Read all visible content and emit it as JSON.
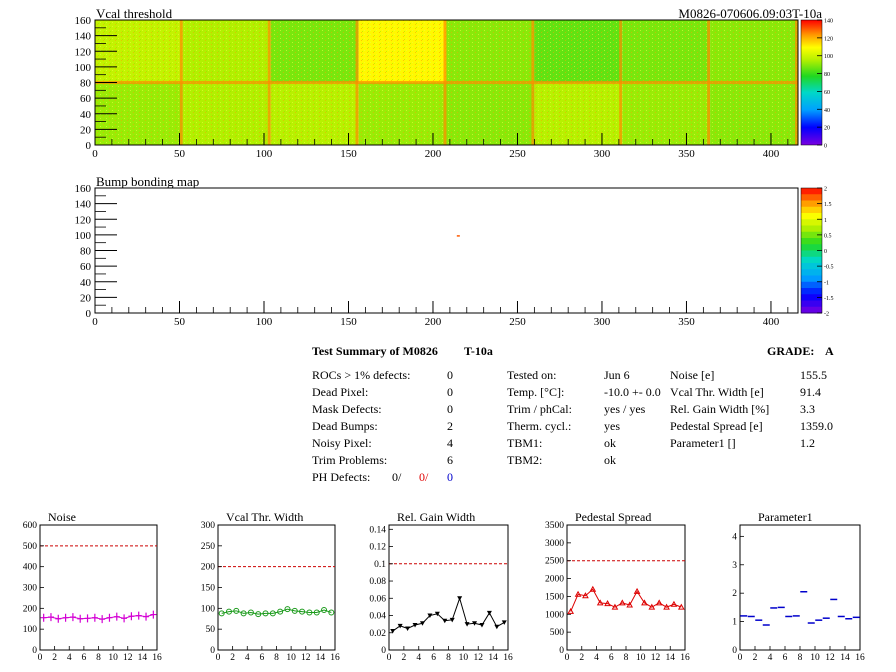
{
  "module_id": "M0826-070606.09:03T-10a",
  "colors": {
    "cut_line": "#cc0000",
    "noise": "#d400d4",
    "vcal": "#1a9a1a",
    "relgain": "#000000",
    "pedestal": "#dd0000",
    "param1": "#0000cc"
  },
  "maps": [
    {
      "title": "Vcal threshold",
      "x_ticks": [
        "0",
        "50",
        "100",
        "150",
        "200",
        "250",
        "300",
        "350",
        "400"
      ],
      "y_ticks": [
        "0",
        "20",
        "40",
        "60",
        "80",
        "100",
        "120",
        "140",
        "160"
      ],
      "palette_ticks": [
        "0",
        "20",
        "40",
        "60",
        "80",
        "100",
        "120",
        "140"
      ]
    },
    {
      "title": "Bump bonding map",
      "x_ticks": [
        "0",
        "50",
        "100",
        "150",
        "200",
        "250",
        "300",
        "350",
        "400"
      ],
      "y_ticks": [
        "0",
        "20",
        "40",
        "60",
        "80",
        "100",
        "120",
        "140",
        "160"
      ],
      "palette_ticks": [
        "-2",
        "-1.5",
        "-1",
        "-0.5",
        "0",
        "0.5",
        "1",
        "1.5",
        "2"
      ]
    }
  ],
  "summary": {
    "title": "Test Summary of M0826",
    "tag": "T-10a",
    "grade_label": "GRADE:",
    "grade": "A",
    "defects": [
      {
        "label": "ROCs > 1% defects:",
        "value": "0"
      },
      {
        "label": "Dead Pixel:",
        "value": "0"
      },
      {
        "label": "Mask Defects:",
        "value": "0"
      },
      {
        "label": "Dead Bumps:",
        "value": "2"
      },
      {
        "label": "Noisy Pixel:",
        "value": "4"
      },
      {
        "label": "Trim Problems:",
        "value": "6"
      }
    ],
    "ph_label": "PH Defects:",
    "ph_values": [
      "0/",
      "0/",
      "0"
    ],
    "conditions": [
      {
        "label": "Tested on:",
        "value": "Jun 6"
      },
      {
        "label": "Temp. [°C]:",
        "value": "-10.0 +- 0.0"
      },
      {
        "label": "Trim / phCal:",
        "value": "yes / yes"
      },
      {
        "label": "Therm. cycl.:",
        "value": "yes"
      },
      {
        "label": "TBM1:",
        "value": "ok"
      },
      {
        "label": "TBM2:",
        "value": "ok"
      }
    ],
    "results": [
      {
        "label": "Noise [e]",
        "value": "155.5"
      },
      {
        "label": "Vcal Thr. Width [e]",
        "value": "91.4"
      },
      {
        "label": "Rel. Gain Width [%]",
        "value": "3.3"
      },
      {
        "label": "Pedestal Spread [e]",
        "value": "1359.0"
      },
      {
        "label": "Parameter1 []",
        "value": "1.2"
      }
    ]
  },
  "chart_data": [
    {
      "type": "heatmap",
      "title": "Vcal threshold",
      "xlim": [
        0,
        416
      ],
      "ylim": [
        0,
        160
      ],
      "z_range": [
        0,
        140
      ],
      "rocs": 16,
      "roc_means": [
        98,
        95,
        88,
        110,
        90,
        85,
        88,
        90,
        92,
        95,
        96,
        92,
        90,
        96,
        92,
        90
      ]
    },
    {
      "type": "heatmap",
      "title": "Bump bonding map",
      "xlim": [
        0,
        416
      ],
      "ylim": [
        0,
        160
      ],
      "z_range": [
        -2,
        2
      ],
      "points": [
        {
          "x": 215,
          "y": 99
        }
      ]
    },
    {
      "type": "scatter",
      "title": "Noise",
      "x": [
        0,
        1,
        2,
        3,
        4,
        5,
        6,
        7,
        8,
        9,
        10,
        11,
        12,
        13,
        14,
        15
      ],
      "ylim": [
        0,
        600
      ],
      "xlim": [
        0,
        16
      ],
      "cut": 500,
      "y_ticks": [
        "0",
        "100",
        "200",
        "300",
        "400",
        "500",
        "600"
      ],
      "values": [
        155,
        158,
        150,
        155,
        158,
        150,
        152,
        155,
        148,
        155,
        160,
        152,
        162,
        165,
        160,
        170
      ]
    },
    {
      "type": "scatter",
      "title": "Vcal Thr. Width",
      "x": [
        0,
        1,
        2,
        3,
        4,
        5,
        6,
        7,
        8,
        9,
        10,
        11,
        12,
        13,
        14,
        15
      ],
      "ylim": [
        0,
        300
      ],
      "xlim": [
        0,
        16
      ],
      "cut": 200,
      "y_ticks": [
        "0",
        "50",
        "100",
        "150",
        "200",
        "250",
        "300"
      ],
      "values": [
        88,
        92,
        94,
        88,
        90,
        86,
        88,
        88,
        92,
        98,
        94,
        92,
        90,
        90,
        96,
        90
      ]
    },
    {
      "type": "line",
      "title": "Rel. Gain Width",
      "x": [
        0,
        1,
        2,
        3,
        4,
        5,
        6,
        7,
        8,
        9,
        10,
        11,
        12,
        13,
        14,
        15
      ],
      "ylim": [
        0,
        0.145
      ],
      "xlim": [
        0,
        16
      ],
      "cut": 0.1,
      "y_ticks": [
        "0",
        "0.02",
        "0.04",
        "0.06",
        "0.08",
        "0.1",
        "0.12",
        "0.14"
      ],
      "values": [
        0.022,
        0.028,
        0.025,
        0.029,
        0.031,
        0.04,
        0.042,
        0.034,
        0.035,
        0.06,
        0.03,
        0.031,
        0.029,
        0.043,
        0.027,
        0.032
      ]
    },
    {
      "type": "line",
      "title": "Pedestal Spread",
      "x": [
        0,
        1,
        2,
        3,
        4,
        5,
        6,
        7,
        8,
        9,
        10,
        11,
        12,
        13,
        14,
        15
      ],
      "ylim": [
        0,
        3500
      ],
      "xlim": [
        0,
        16
      ],
      "cut": 2500,
      "y_ticks": [
        "0",
        "500",
        "1000",
        "1500",
        "2000",
        "2500",
        "3000",
        "3500"
      ],
      "values": [
        1080,
        1560,
        1520,
        1700,
        1320,
        1300,
        1200,
        1320,
        1260,
        1640,
        1320,
        1200,
        1320,
        1200,
        1280,
        1200
      ]
    },
    {
      "type": "scatter",
      "title": "Parameter1",
      "x": [
        0,
        1,
        2,
        3,
        4,
        5,
        6,
        7,
        8,
        9,
        10,
        11,
        12,
        13,
        14,
        15
      ],
      "ylim": [
        0,
        4.4
      ],
      "xlim": [
        0,
        16
      ],
      "cut": null,
      "y_ticks": [
        "0",
        "1",
        "2",
        "3",
        "4"
      ],
      "values": [
        1.2,
        1.18,
        1.05,
        0.88,
        1.48,
        1.5,
        1.18,
        1.2,
        2.05,
        0.95,
        1.05,
        1.12,
        1.78,
        1.18,
        1.1,
        1.15
      ]
    }
  ],
  "small_x_ticks": [
    "0",
    "2",
    "4",
    "6",
    "8",
    "10",
    "12",
    "14",
    "16"
  ]
}
